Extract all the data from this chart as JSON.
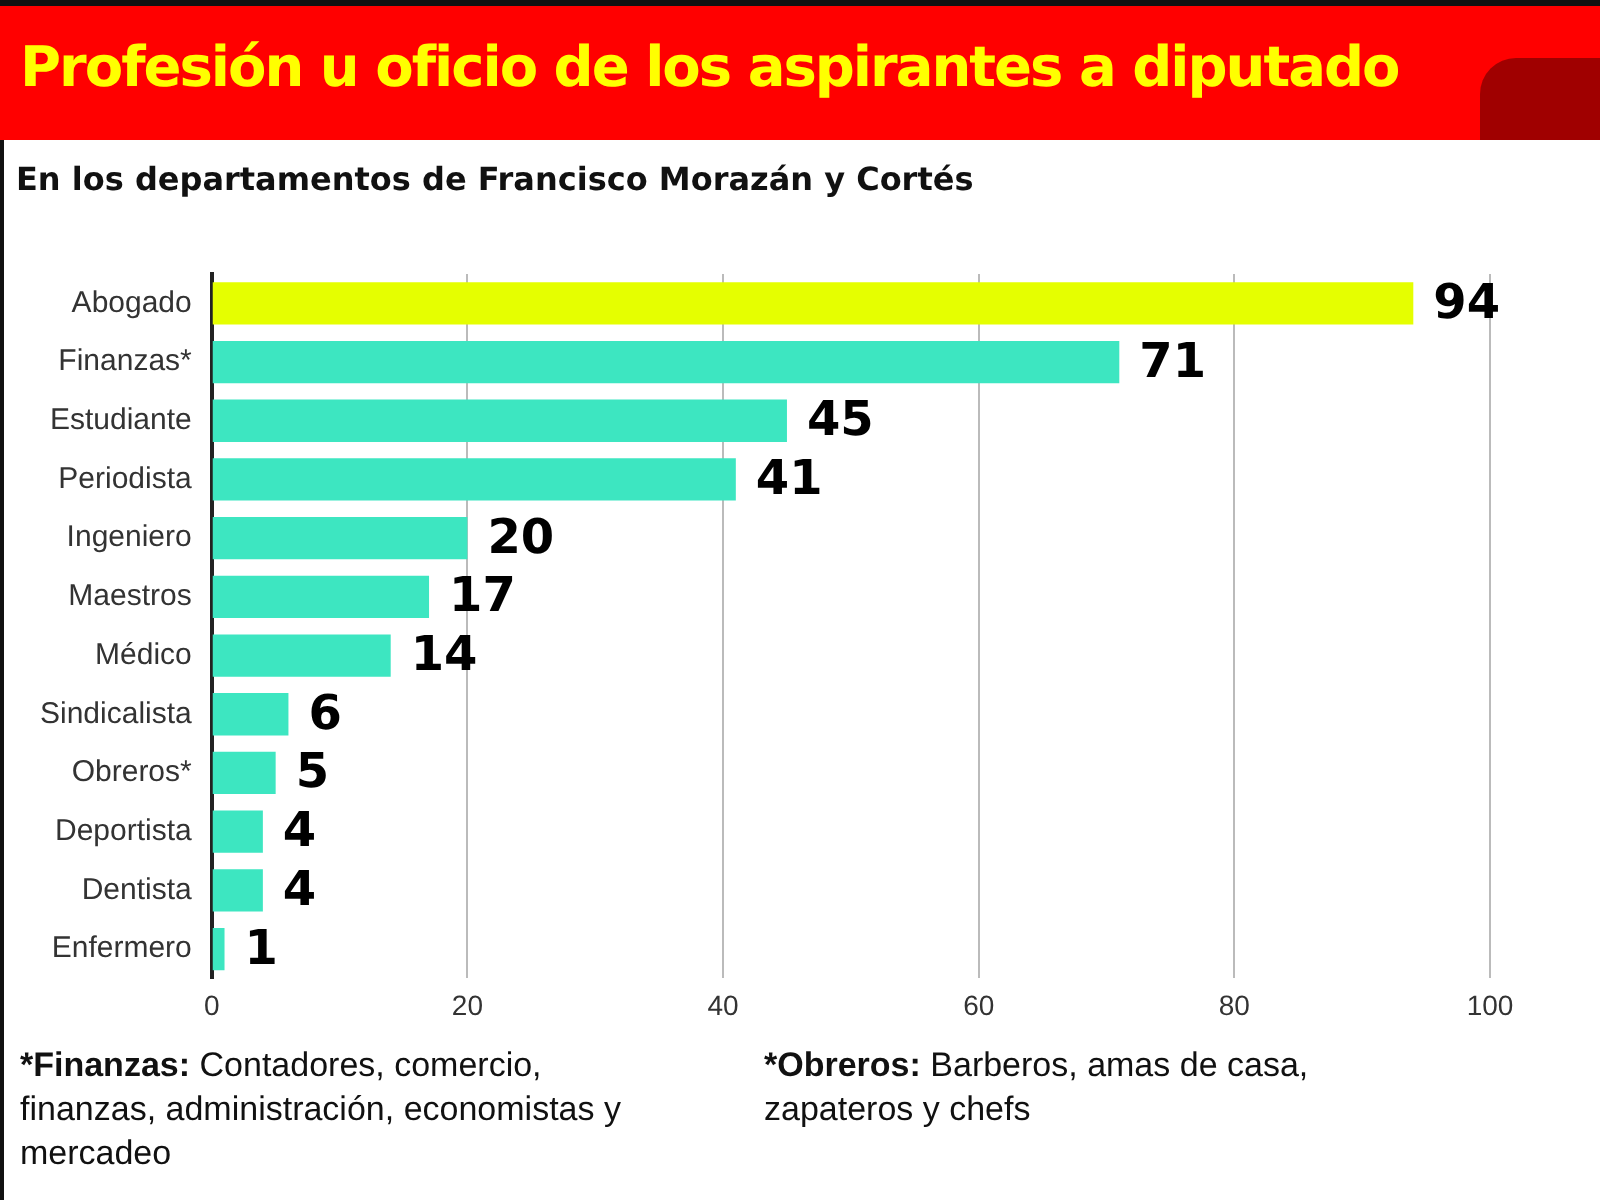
{
  "chart_data": {
    "type": "bar",
    "orientation": "horizontal",
    "title": "Profesión u oficio de los aspirantes a diputado",
    "subtitle": "En los departamentos de Francisco Morazán y Cortés",
    "categories": [
      "Abogado",
      "Finanzas*",
      "Estudiante",
      "Periodista",
      "Ingeniero",
      "Maestros",
      "Médico",
      "Sindicalista",
      "Obreros*",
      "Deportista",
      "Dentista",
      "Enfermero"
    ],
    "values": [
      94,
      71,
      45,
      41,
      20,
      17,
      14,
      6,
      5,
      4,
      4,
      1
    ],
    "colors": [
      "#e5ff00",
      "#3de6c1",
      "#3de6c1",
      "#3de6c1",
      "#3de6c1",
      "#3de6c1",
      "#3de6c1",
      "#3de6c1",
      "#3de6c1",
      "#3de6c1",
      "#3de6c1",
      "#3de6c1"
    ],
    "xlim": [
      0,
      100
    ],
    "xticks": [
      0,
      20,
      40,
      60,
      80,
      100
    ],
    "grid": "x",
    "data_labels": true,
    "legend": false,
    "annotations": [
      "*Finanzas: Contadores, comercio, finanzas, administración, economistas y mercadeo",
      "*Obreros: Barberos, amas de casa, zapateros y chefs"
    ]
  }
}
